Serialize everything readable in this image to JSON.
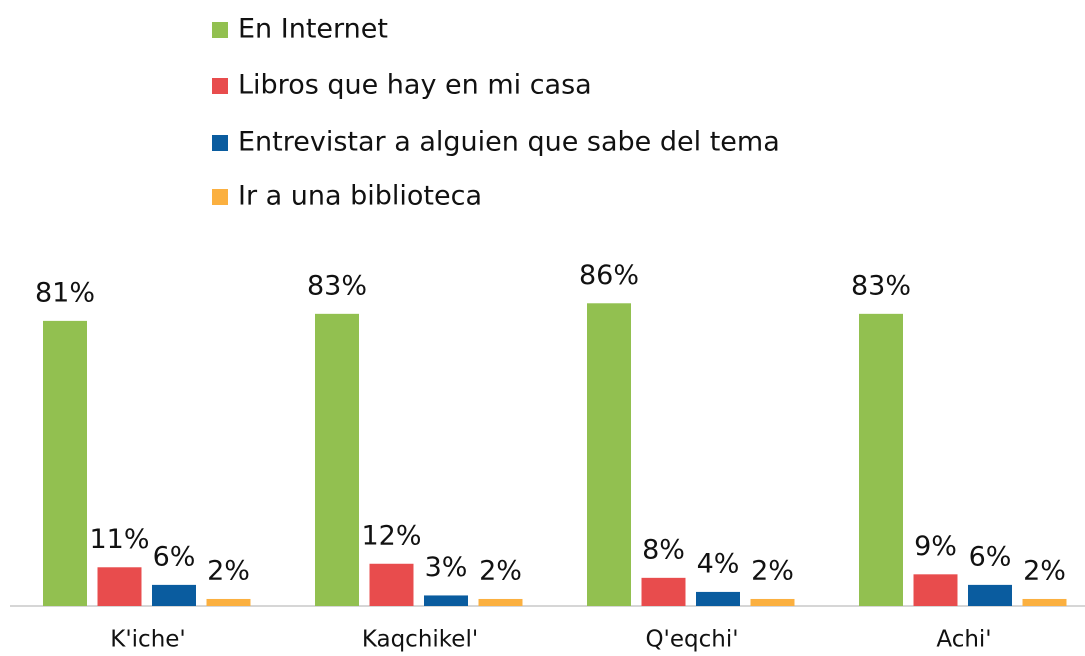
{
  "chart_data": {
    "type": "bar",
    "categories": [
      "K'iche'",
      "Kaqchikel'",
      "Q'eqchi'",
      "Achi'"
    ],
    "series": [
      {
        "name": "En Internet",
        "color": "#92c050",
        "values": [
          81,
          83,
          86,
          83
        ],
        "value_labels": [
          "81%",
          "83%",
          "86%",
          "83%"
        ]
      },
      {
        "name": "Libros que hay en mi casa",
        "color": "#e84c4d",
        "values": [
          11,
          12,
          8,
          9
        ],
        "value_labels": [
          "11%",
          "12%",
          "8%",
          "9%"
        ]
      },
      {
        "name": "Entrevistar a alguien que sabe del tema",
        "color": "#0a5c9f",
        "values": [
          6,
          3,
          4,
          6
        ],
        "value_labels": [
          "6%",
          "3%",
          "4%",
          "6%"
        ]
      },
      {
        "name": "Ir a una biblioteca",
        "color": "#fbb040",
        "values": [
          2,
          2,
          2,
          2
        ],
        "value_labels": [
          "2%",
          "2%",
          "2%",
          "2%"
        ]
      }
    ]
  }
}
